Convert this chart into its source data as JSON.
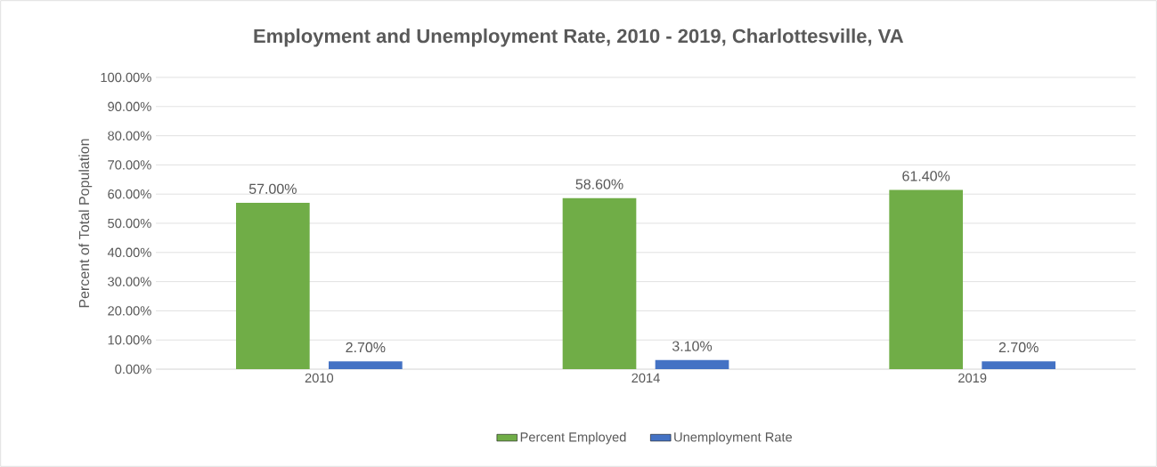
{
  "chart_data": {
    "type": "bar",
    "title": "Employment and Unemployment Rate, 2010 - 2019, Charlottesville, VA",
    "ylabel": "Percent of Total Population",
    "categories": [
      "2010",
      "2014",
      "2019"
    ],
    "series": [
      {
        "name": "Percent Employed",
        "color": "#70ad47",
        "values": [
          57.0,
          58.6,
          61.4
        ],
        "value_labels": [
          "57.00%",
          "58.60%",
          "61.40%"
        ]
      },
      {
        "name": "Unemployment Rate",
        "color": "#4472c4",
        "values": [
          2.7,
          3.1,
          2.7
        ],
        "value_labels": [
          "2.70%",
          "3.10%",
          "2.70%"
        ]
      }
    ],
    "ylim": [
      0,
      100
    ],
    "yticks": [
      {
        "value": 0,
        "label": "0.00%"
      },
      {
        "value": 10,
        "label": "10.00%"
      },
      {
        "value": 20,
        "label": "20.00%"
      },
      {
        "value": 30,
        "label": "30.00%"
      },
      {
        "value": 40,
        "label": "40.00%"
      },
      {
        "value": 50,
        "label": "50.00%"
      },
      {
        "value": 60,
        "label": "60.00%"
      },
      {
        "value": 70,
        "label": "70.00%"
      },
      {
        "value": 80,
        "label": "80.00%"
      },
      {
        "value": 90,
        "label": "90.00%"
      },
      {
        "value": 100,
        "label": "100.00%"
      }
    ],
    "grid": "y",
    "legend": "bottom"
  }
}
